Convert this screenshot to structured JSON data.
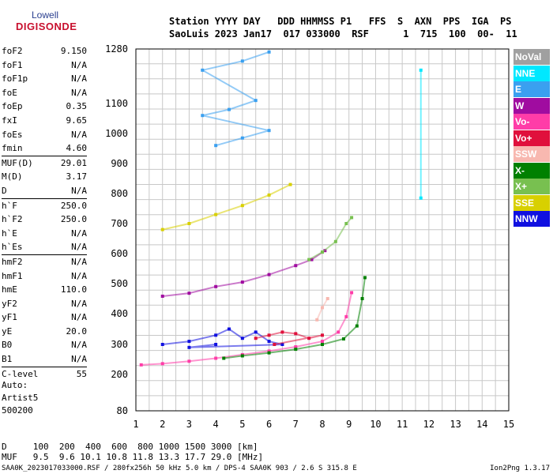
{
  "logo": {
    "line1": "Lowell",
    "line2": "DIGISONDE"
  },
  "header": {
    "labels_line": "Station YYYY DAY   DDD HHMMSS P1   FFS  S  AXN  PPS  IGA  PS",
    "values_line": "SaoLuis 2023 Jan17  017 033000  RSF      1  715  100  00-  11"
  },
  "params": [
    {
      "k": "foF2",
      "v": "9.150"
    },
    {
      "k": "foF1",
      "v": "N/A"
    },
    {
      "k": "foF1p",
      "v": "N/A"
    },
    {
      "k": "foE",
      "v": "N/A"
    },
    {
      "k": "foEp",
      "v": "0.35"
    },
    {
      "k": "fxI",
      "v": "9.65"
    },
    {
      "k": "foEs",
      "v": "N/A"
    },
    {
      "k": "fmin",
      "v": "4.60"
    },
    {
      "sep": true
    },
    {
      "k": "MUF(D)",
      "v": "29.01"
    },
    {
      "k": "M(D)",
      "v": "3.17"
    },
    {
      "k": "D",
      "v": "N/A"
    },
    {
      "sep": true
    },
    {
      "k": "h`F",
      "v": "250.0"
    },
    {
      "k": "h`F2",
      "v": "250.0"
    },
    {
      "k": "h`E",
      "v": "N/A"
    },
    {
      "k": "h`Es",
      "v": "N/A"
    },
    {
      "sep": true
    },
    {
      "k": "hmF2",
      "v": "N/A"
    },
    {
      "k": "hmF1",
      "v": "N/A"
    },
    {
      "k": "hmE",
      "v": "110.0"
    },
    {
      "k": "yF2",
      "v": "N/A"
    },
    {
      "k": "yF1",
      "v": "N/A"
    },
    {
      "k": "yE",
      "v": "20.0"
    },
    {
      "k": "B0",
      "v": "N/A"
    },
    {
      "k": "B1",
      "v": "N/A"
    },
    {
      "sep": true
    },
    {
      "k": "C-level",
      "v": "55"
    }
  ],
  "auto": {
    "line1": "Auto:",
    "line2": "Artist5",
    "line3": "500200"
  },
  "legend": [
    {
      "label": "NoVal",
      "color": "#a0a0a0"
    },
    {
      "label": "NNE",
      "color": "#00e8ff"
    },
    {
      "label": "E",
      "color": "#3aa0f0"
    },
    {
      "label": "W",
      "color": "#a00ca0"
    },
    {
      "label": "Vo-",
      "color": "#ff3ca8"
    },
    {
      "label": "Vo+",
      "color": "#e0103c"
    },
    {
      "label": "SSW",
      "color": "#f8b8b0"
    },
    {
      "label": "X-",
      "color": "#008000"
    },
    {
      "label": "X+",
      "color": "#78c050"
    },
    {
      "label": "SSE",
      "color": "#d8d000"
    },
    {
      "label": "NNW",
      "color": "#1010e0"
    }
  ],
  "bottom": {
    "d_line": "D     100  200  400  600  800 1000 1500 3000 [km]",
    "muf_line": "MUF   9.5  9.6 10.1 10.8 11.8 13.3 17.7 29.0 [MHz]",
    "footer": "SAA0K_2023017033000.RSF / 280fx256h 50 kHz 5.0 km / DPS-4 SAA0K 903 / 2.6 S 315.8 E",
    "version": "Ion2Png 1.3.17"
  },
  "chart_data": {
    "type": "scatter",
    "xlabel": "",
    "ylabel": "",
    "xlim": [
      1,
      15
    ],
    "ylim": [
      80,
      1280
    ],
    "x_ticks": [
      1,
      2,
      3,
      4,
      5,
      6,
      7,
      8,
      9,
      10,
      11,
      12,
      13,
      14,
      15
    ],
    "y_ticks": [
      80,
      200,
      300,
      400,
      500,
      600,
      700,
      800,
      900,
      1000,
      1100,
      1280
    ],
    "grid": true,
    "series": [
      {
        "name": "Vo-",
        "color": "#ff3ca8",
        "points": [
          [
            1.2,
            232
          ],
          [
            2,
            236
          ],
          [
            3,
            244
          ],
          [
            4,
            254
          ],
          [
            5,
            266
          ],
          [
            6,
            278
          ],
          [
            7,
            292
          ],
          [
            8,
            310
          ],
          [
            8.6,
            340
          ],
          [
            8.9,
            390
          ],
          [
            9.1,
            470
          ]
        ]
      },
      {
        "name": "X-",
        "color": "#008000",
        "points": [
          [
            4.3,
            254
          ],
          [
            5,
            262
          ],
          [
            6,
            272
          ],
          [
            7,
            284
          ],
          [
            8,
            300
          ],
          [
            8.8,
            318
          ],
          [
            9.3,
            360
          ],
          [
            9.5,
            450
          ],
          [
            9.6,
            520
          ]
        ]
      },
      {
        "name": "NNW",
        "color": "#1010e0",
        "points": [
          [
            2,
            300
          ],
          [
            3,
            310
          ],
          [
            4,
            330
          ],
          [
            4.5,
            350
          ],
          [
            5,
            320
          ],
          [
            5.5,
            340
          ],
          [
            6,
            310
          ],
          [
            6.5,
            300
          ],
          [
            3,
            290
          ],
          [
            4,
            300
          ]
        ]
      },
      {
        "name": "Vo+",
        "color": "#e0103c",
        "points": [
          [
            5.5,
            320
          ],
          [
            6,
            330
          ],
          [
            6.5,
            340
          ],
          [
            7,
            335
          ],
          [
            7.5,
            320
          ],
          [
            8,
            330
          ],
          [
            6.2,
            300
          ]
        ]
      },
      {
        "name": "W",
        "color": "#a00ca0",
        "points": [
          [
            2,
            458
          ],
          [
            3,
            468
          ],
          [
            4,
            490
          ],
          [
            5,
            505
          ],
          [
            6,
            530
          ],
          [
            7,
            560
          ],
          [
            7.6,
            580
          ],
          [
            8.1,
            610
          ]
        ]
      },
      {
        "name": "X+",
        "color": "#78c050",
        "points": [
          [
            7.5,
            580
          ],
          [
            8,
            605
          ],
          [
            8.5,
            640
          ],
          [
            8.9,
            700
          ],
          [
            9.1,
            720
          ]
        ]
      },
      {
        "name": "SSE",
        "color": "#d8d000",
        "points": [
          [
            2,
            680
          ],
          [
            3,
            700
          ],
          [
            4,
            730
          ],
          [
            5,
            760
          ],
          [
            6,
            795
          ],
          [
            6.8,
            830
          ]
        ]
      },
      {
        "name": "NNE",
        "color": "#00e8ff",
        "points": [
          [
            11.7,
            1210
          ],
          [
            11.7,
            785
          ]
        ]
      },
      {
        "name": "E",
        "color": "#3aa0f0",
        "points": [
          [
            4,
            960
          ],
          [
            5,
            985
          ],
          [
            6,
            1010
          ],
          [
            3.5,
            1060
          ],
          [
            4.5,
            1080
          ],
          [
            5.5,
            1110
          ],
          [
            3.5,
            1210
          ],
          [
            5,
            1240
          ],
          [
            6,
            1270
          ]
        ]
      },
      {
        "name": "SSW",
        "color": "#f8b8b0",
        "points": [
          [
            7.8,
            380
          ],
          [
            8,
            420
          ],
          [
            8.2,
            450
          ]
        ]
      }
    ]
  }
}
